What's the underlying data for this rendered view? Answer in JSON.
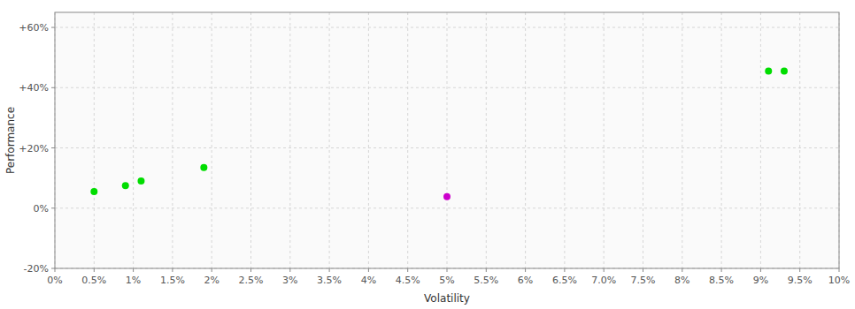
{
  "chart_data": {
    "type": "scatter",
    "xlabel": "Volatility",
    "ylabel": "Performance",
    "xlim": [
      0,
      0.1
    ],
    "ylim": [
      -0.2,
      0.65
    ],
    "xticks": [
      {
        "value": 0,
        "label": "0%"
      },
      {
        "value": 0.005,
        "label": "0.5%"
      },
      {
        "value": 0.01,
        "label": "1%"
      },
      {
        "value": 0.015,
        "label": "1.5%"
      },
      {
        "value": 0.02,
        "label": "2%"
      },
      {
        "value": 0.025,
        "label": "2.5%"
      },
      {
        "value": 0.03,
        "label": "3%"
      },
      {
        "value": 0.035,
        "label": "3.5%"
      },
      {
        "value": 0.04,
        "label": "4%"
      },
      {
        "value": 0.045,
        "label": "4.5%"
      },
      {
        "value": 0.05,
        "label": "5%"
      },
      {
        "value": 0.055,
        "label": "5.5%"
      },
      {
        "value": 0.06,
        "label": "6%"
      },
      {
        "value": 0.065,
        "label": "6.5%"
      },
      {
        "value": 0.07,
        "label": "7.0%"
      },
      {
        "value": 0.075,
        "label": "7.5%"
      },
      {
        "value": 0.08,
        "label": "8%"
      },
      {
        "value": 0.085,
        "label": "8.5%"
      },
      {
        "value": 0.09,
        "label": "9%"
      },
      {
        "value": 0.095,
        "label": "9.5%"
      },
      {
        "value": 0.1,
        "label": "10%"
      }
    ],
    "yticks": [
      {
        "value": -0.2,
        "label": "-20%"
      },
      {
        "value": 0.0,
        "label": "0%"
      },
      {
        "value": 0.2,
        "label": "+20%"
      },
      {
        "value": 0.4,
        "label": "+40%"
      },
      {
        "value": 0.6,
        "label": "+60%"
      }
    ],
    "grid": true,
    "series": [
      {
        "color": "#00dd00",
        "x": [
          0.005,
          0.009,
          0.011,
          0.019,
          0.091,
          0.093
        ],
        "values": [
          0.055,
          0.075,
          0.09,
          0.135,
          0.455,
          0.455
        ]
      },
      {
        "color": "#cc00cc",
        "x": [
          0.05
        ],
        "values": [
          0.038
        ]
      }
    ]
  }
}
